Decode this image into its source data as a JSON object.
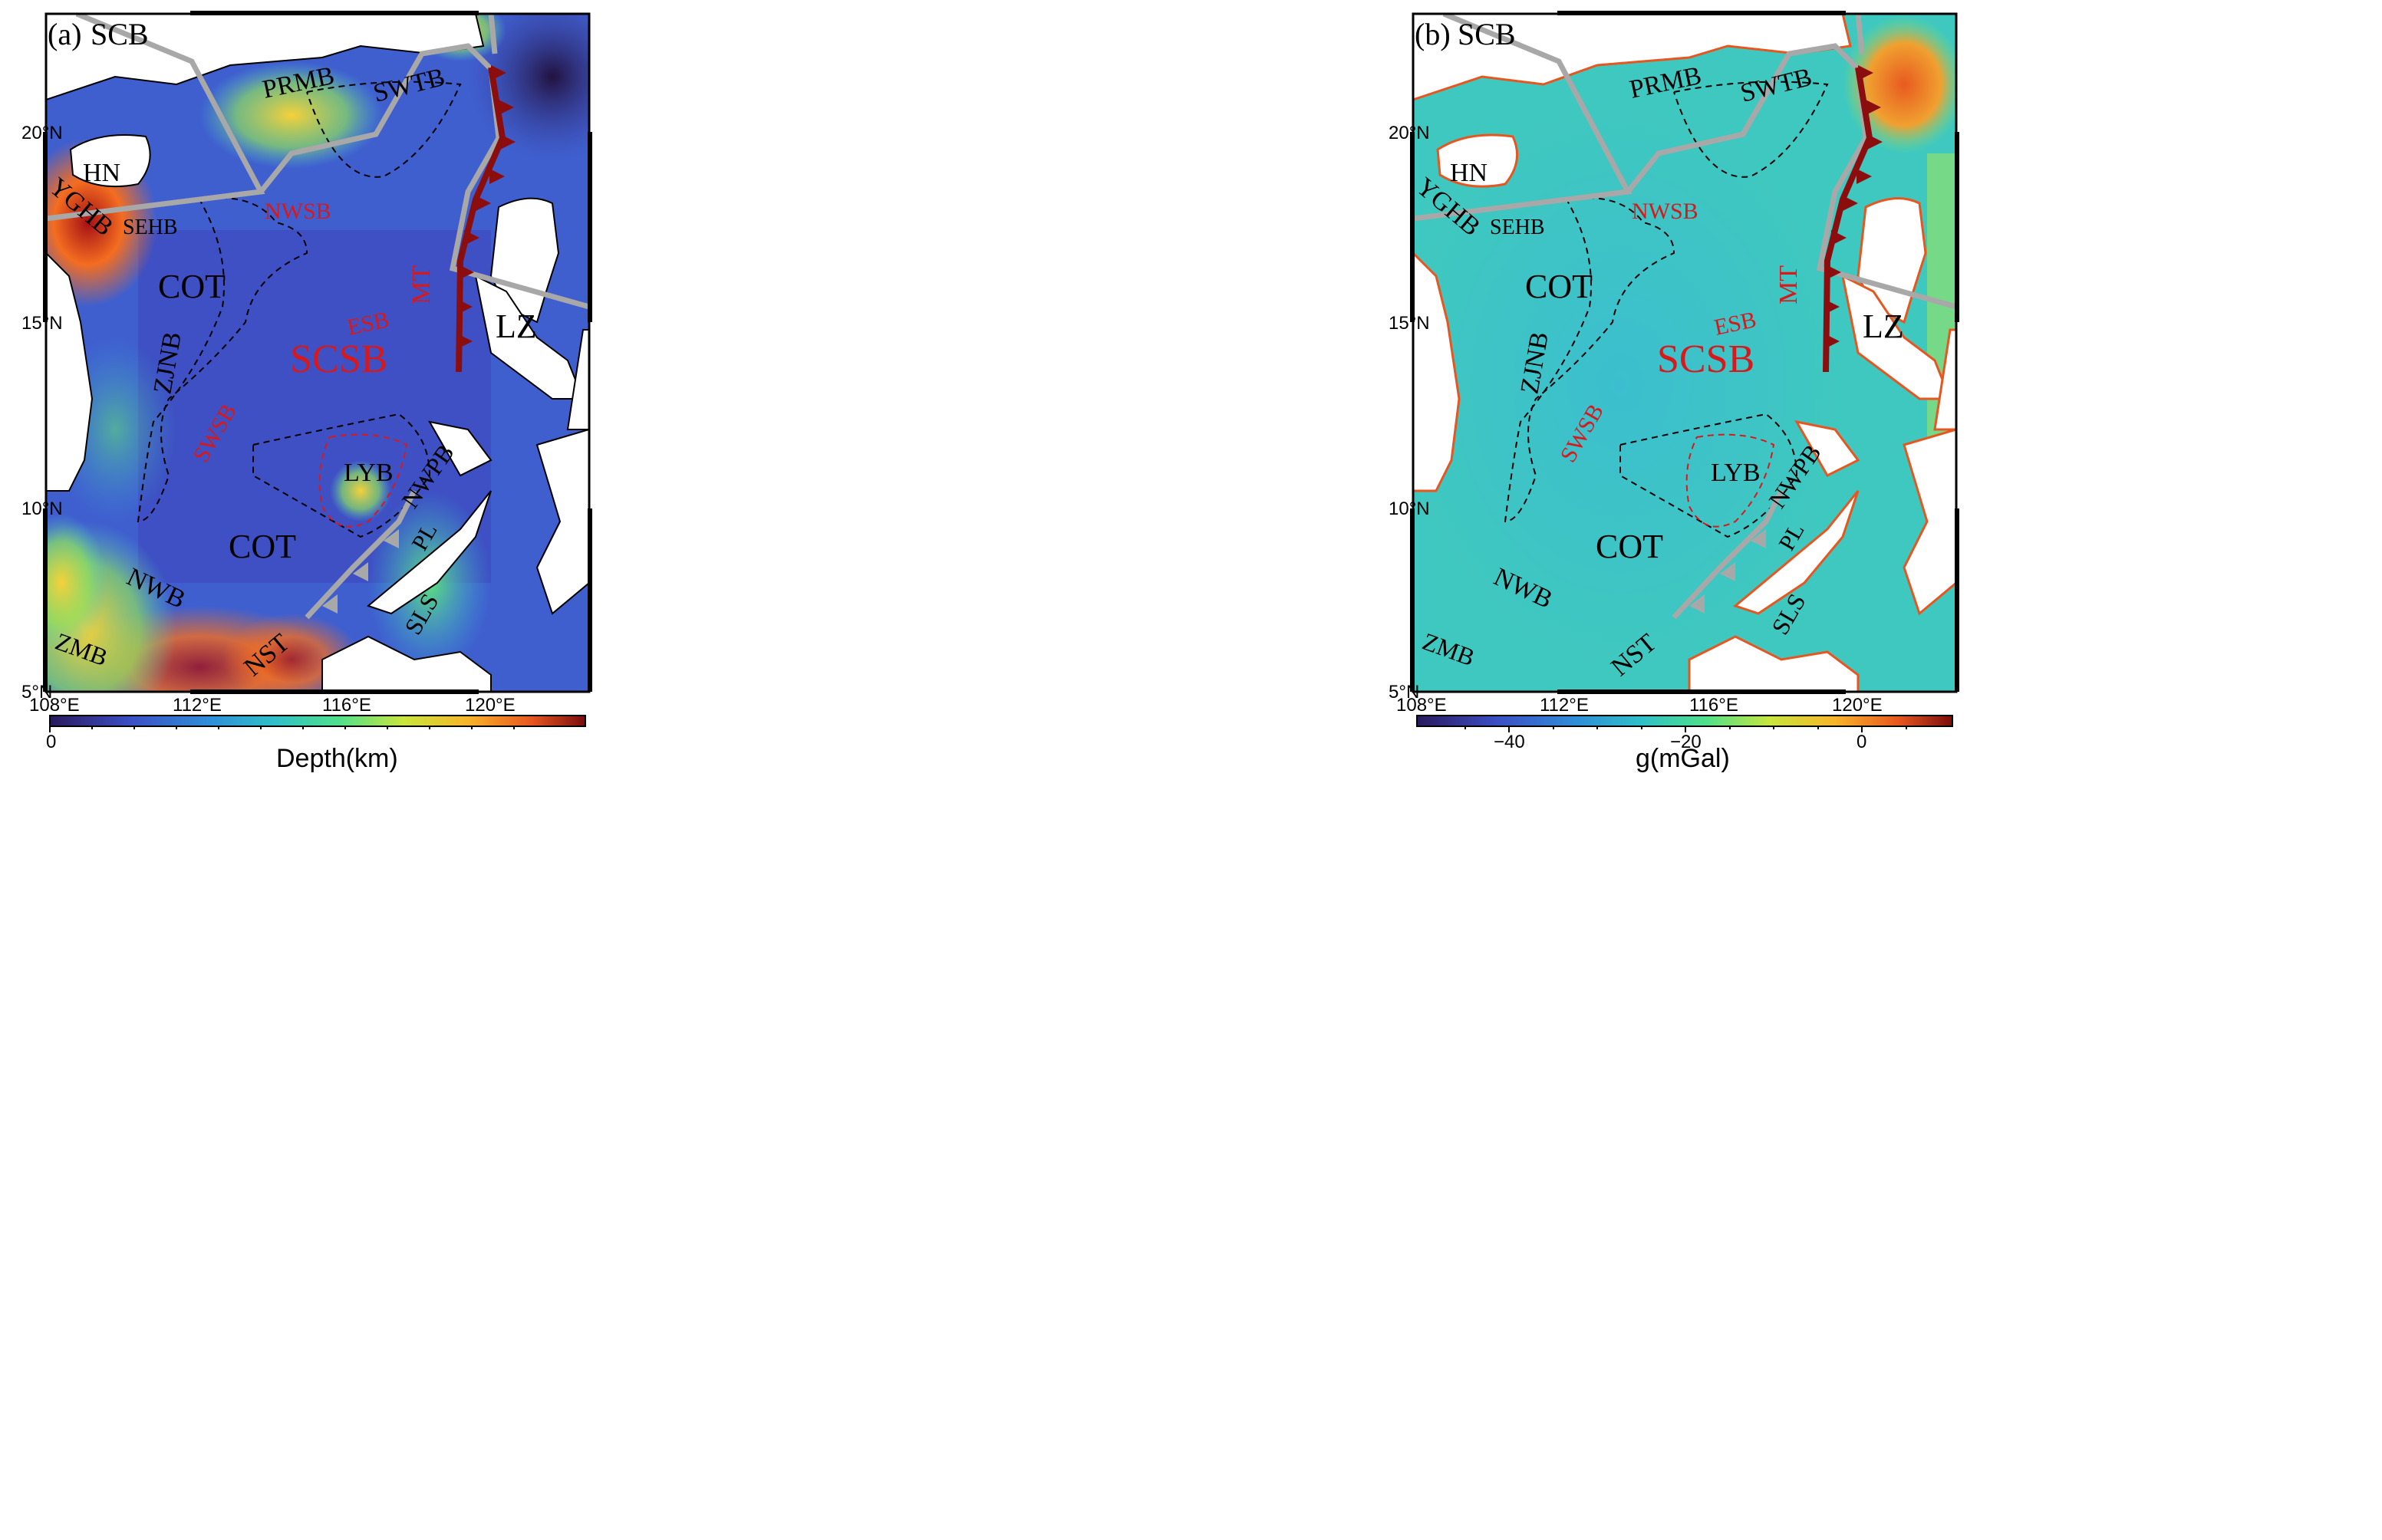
{
  "panels": [
    {
      "tag": "(a)",
      "colorbar": {
        "title": "Depth(km)",
        "ticks": [
          "0"
        ],
        "colors": [
          "#2a1a5e",
          "#3b4fc4",
          "#2f8fd8",
          "#2fc0c8",
          "#4fe08a",
          "#c8e63c",
          "#f8b52a",
          "#e8561f",
          "#7a0c0c"
        ]
      }
    },
    {
      "tag": "(b)",
      "colorbar": {
        "title": "g(mGal)",
        "ticks": [
          "−40",
          "−20",
          "0"
        ],
        "colors": [
          "#2a1a5e",
          "#3b4fc4",
          "#2f8fd8",
          "#2fc0c8",
          "#4fe08a",
          "#c8e63c",
          "#f8b52a",
          "#e8561f",
          "#7a0c0c"
        ]
      }
    }
  ],
  "axes": {
    "lon_ticks": [
      "108°E",
      "112°E",
      "116°E",
      "120°E"
    ],
    "lat_ticks": [
      "20°N",
      "15°N",
      "10°N",
      "5°N"
    ]
  },
  "labels": {
    "scb": "SCB",
    "prmb": "PRMB",
    "swtb": "SWTB",
    "hn": "HN",
    "yghb": "YGHB",
    "sehb": "SEHB",
    "nwsb": "NWSB",
    "cot1": "COT",
    "mt": "MT",
    "esb": "ESB",
    "lz": "LZ",
    "zjnb": "ZJNB",
    "scsb": "SCSB",
    "swsb": "SWSB",
    "lyb": "LYB",
    "nwpb": "NWPB",
    "cot2": "COT",
    "pl": "PL",
    "nwb": "NWB",
    "sls": "SLS",
    "zmb": "ZMB",
    "nst": "NST"
  },
  "colors": {
    "trench_red": "#8b0d0d",
    "boundary_gray": "#a8a8a8",
    "label_red": "#d7191c"
  }
}
